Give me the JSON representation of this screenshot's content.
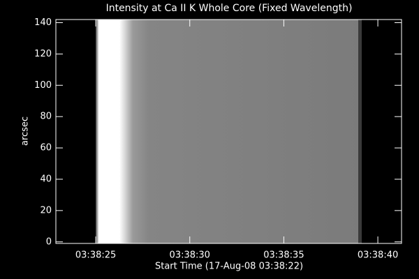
{
  "chart_data": {
    "type": "image",
    "title": "Intensity at Ca II K Whole Core (Fixed Wavelength)",
    "xlabel": "Start Time (17-Aug-08 03:38:22)",
    "ylabel": "arcsec",
    "xlim": [
      0.88,
      19.26
    ],
    "xticks": [
      {
        "value": 3,
        "label": "03:38:25"
      },
      {
        "value": 8,
        "label": "03:38:30"
      },
      {
        "value": 13,
        "label": "03:38:35"
      },
      {
        "value": 18,
        "label": "03:38:40"
      }
    ],
    "ylim": [
      -1,
      142
    ],
    "yticks": [
      0,
      20,
      40,
      60,
      80,
      100,
      120,
      140
    ],
    "axis_color": "#ffffff"
  }
}
